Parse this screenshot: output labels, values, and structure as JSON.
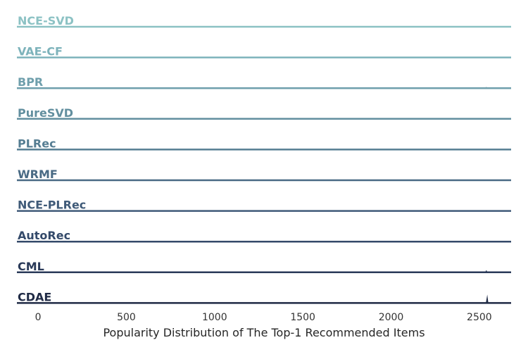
{
  "chart_data": {
    "type": "ridgeline",
    "xlabel": "Popularity Distribution of The Top-1 Recommended Items",
    "x_ticks": [
      0,
      500,
      1000,
      1500,
      2000,
      2500
    ],
    "xlim": [
      -120,
      2680
    ],
    "grid": false,
    "series": [
      {
        "name": "NCE-SVD",
        "color": "#8cc2c4",
        "peaks": []
      },
      {
        "name": "VAE-CF",
        "color": "#7db3bb",
        "peaks": []
      },
      {
        "name": "BPR",
        "color": "#6f9fac",
        "peaks": [
          {
            "x": 2540,
            "height": 0.05
          }
        ]
      },
      {
        "name": "PureSVD",
        "color": "#628f9f",
        "peaks": []
      },
      {
        "name": "PLRec",
        "color": "#557d92",
        "peaks": []
      },
      {
        "name": "WRMF",
        "color": "#496a84",
        "peaks": []
      },
      {
        "name": "NCE-PLRec",
        "color": "#3f5a78",
        "peaks": []
      },
      {
        "name": "AutoRec",
        "color": "#344a6a",
        "peaks": []
      },
      {
        "name": "CML",
        "color": "#2a3a59",
        "peaks": [
          {
            "x": 2540,
            "height": 0.08
          }
        ]
      },
      {
        "name": "CDAE",
        "color": "#1f2a45",
        "peaks": [
          {
            "x": 2545,
            "height": 0.3
          }
        ]
      }
    ]
  }
}
